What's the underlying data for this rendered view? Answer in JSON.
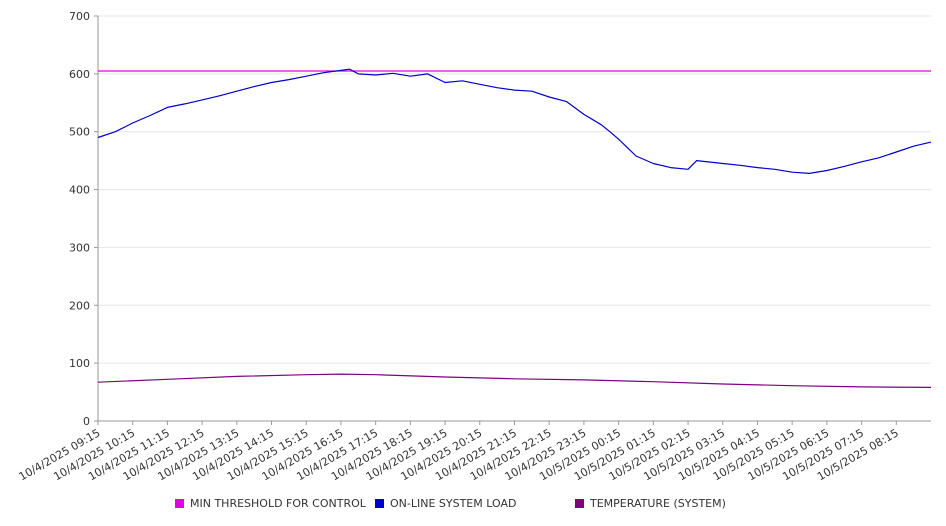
{
  "chart_data": {
    "type": "line",
    "ylim": [
      0,
      700
    ],
    "y_ticks": [
      "0",
      "100",
      "200",
      "300",
      "400",
      "500",
      "600",
      "700"
    ],
    "grid": true,
    "legend_position": "bottom",
    "x_tick_labels": [
      "10/4/2025 09:15",
      "10/4/2025 10:15",
      "10/4/2025 11:15",
      "10/4/2025 12:15",
      "10/4/2025 13:15",
      "10/4/2025 14:15",
      "10/4/2025 15:15",
      "10/4/2025 16:15",
      "10/4/2025 17:15",
      "10/4/2025 18:15",
      "10/4/2025 19:15",
      "10/4/2025 20:15",
      "10/4/2025 21:15",
      "10/4/2025 22:15",
      "10/4/2025 23:15",
      "10/5/2025 00:15",
      "10/5/2025 01:15",
      "10/5/2025 02:15",
      "10/5/2025 03:15",
      "10/5/2025 04:15",
      "10/5/2025 05:15",
      "10/5/2025 06:15",
      "10/5/2025 07:15",
      "10/5/2025 08:15"
    ],
    "x_range": [
      "10/4/2025 09:15",
      "10/5/2025 09:15"
    ],
    "series": [
      {
        "name": "MIN THRESHOLD FOR CONTROL",
        "color": "#e000e0",
        "x": [
          "10/4/2025 09:15",
          "10/5/2025 09:15"
        ],
        "values": [
          605,
          605
        ]
      },
      {
        "name": "ON-LINE SYSTEM LOAD",
        "color": "#0000cc",
        "x": [
          "10/4/2025 09:15",
          "10/4/2025 09:45",
          "10/4/2025 10:15",
          "10/4/2025 10:45",
          "10/4/2025 11:15",
          "10/4/2025 11:45",
          "10/4/2025 12:15",
          "10/4/2025 12:45",
          "10/4/2025 13:15",
          "10/4/2025 13:45",
          "10/4/2025 14:15",
          "10/4/2025 14:45",
          "10/4/2025 15:15",
          "10/4/2025 15:45",
          "10/4/2025 16:15",
          "10/4/2025 16:30",
          "10/4/2025 16:45",
          "10/4/2025 17:15",
          "10/4/2025 17:45",
          "10/4/2025 18:15",
          "10/4/2025 18:45",
          "10/4/2025 19:15",
          "10/4/2025 19:45",
          "10/4/2025 20:15",
          "10/4/2025 20:45",
          "10/4/2025 21:15",
          "10/4/2025 21:45",
          "10/4/2025 22:15",
          "10/4/2025 22:45",
          "10/4/2025 23:15",
          "10/4/2025 23:45",
          "10/5/2025 00:00",
          "10/5/2025 00:15",
          "10/5/2025 00:45",
          "10/5/2025 01:15",
          "10/5/2025 01:45",
          "10/5/2025 02:15",
          "10/5/2025 02:30",
          "10/5/2025 03:15",
          "10/5/2025 03:45",
          "10/5/2025 04:15",
          "10/5/2025 04:45",
          "10/5/2025 05:15",
          "10/5/2025 05:45",
          "10/5/2025 06:15",
          "10/5/2025 06:45",
          "10/5/2025 07:15",
          "10/5/2025 07:45",
          "10/5/2025 08:15",
          "10/5/2025 08:45",
          "10/5/2025 09:15"
        ],
        "values": [
          490,
          500,
          515,
          528,
          542,
          548,
          555,
          562,
          570,
          578,
          585,
          590,
          596,
          602,
          606,
          608,
          600,
          598,
          601,
          596,
          600,
          585,
          588,
          582,
          576,
          572,
          570,
          560,
          552,
          530,
          512,
          500,
          487,
          458,
          445,
          438,
          435,
          450,
          445,
          442,
          438,
          435,
          430,
          428,
          433,
          440,
          448,
          455,
          465,
          475,
          482
        ]
      },
      {
        "name": "TEMPERATURE (SYSTEM)",
        "color": "#800080",
        "x": [
          "10/4/2025 09:15",
          "10/4/2025 11:15",
          "10/4/2025 13:15",
          "10/4/2025 15:15",
          "10/4/2025 16:15",
          "10/4/2025 17:15",
          "10/4/2025 19:15",
          "10/4/2025 21:15",
          "10/4/2025 23:15",
          "10/5/2025 01:15",
          "10/5/2025 03:15",
          "10/5/2025 05:15",
          "10/5/2025 07:15",
          "10/5/2025 09:15"
        ],
        "values": [
          67,
          72,
          77,
          80,
          81,
          80,
          76,
          73,
          71,
          68,
          64,
          61,
          59,
          58
        ]
      }
    ]
  }
}
